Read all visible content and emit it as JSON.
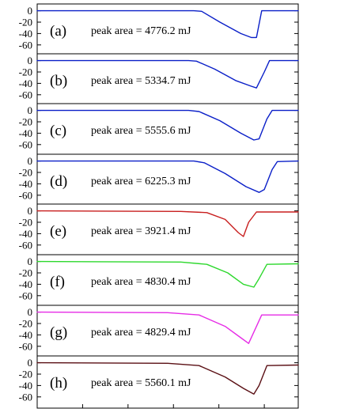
{
  "chart_data": [
    {
      "type": "line",
      "panel_label": "(a)",
      "annotation": "peak area = 4776.2 mJ",
      "ylim": [
        -70,
        5
      ],
      "yticks": [
        "0",
        "-20",
        "-40",
        "-60"
      ],
      "color": "#0a1fc8",
      "series": [
        {
          "x": [
            0.0,
            0.6,
            0.63,
            0.7,
            0.78,
            0.82,
            0.84,
            0.86,
            1.0
          ],
          "y": [
            0,
            0,
            -1,
            -20,
            -40,
            -47,
            -47,
            0,
            0
          ]
        }
      ]
    },
    {
      "type": "line",
      "panel_label": "(b)",
      "annotation": "peak area = 5334.7 mJ",
      "ylim": [
        -70,
        5
      ],
      "yticks": [
        "0",
        "-20",
        "-40",
        "-60"
      ],
      "color": "#0a1fc8",
      "series": [
        {
          "x": [
            0.0,
            0.58,
            0.61,
            0.68,
            0.76,
            0.82,
            0.84,
            0.87,
            0.89,
            1.0
          ],
          "y": [
            0,
            0,
            -1,
            -15,
            -35,
            -45,
            -48,
            -20,
            0,
            0
          ]
        }
      ]
    },
    {
      "type": "line",
      "panel_label": "(c)",
      "annotation": "peak area = 5555.6 mJ",
      "ylim": [
        -70,
        5
      ],
      "yticks": [
        "0",
        "-20",
        "-40",
        "-60"
      ],
      "color": "#0a1fc8",
      "series": [
        {
          "x": [
            0.0,
            0.58,
            0.62,
            0.7,
            0.78,
            0.83,
            0.85,
            0.88,
            0.9,
            1.0
          ],
          "y": [
            0,
            0,
            -2,
            -18,
            -40,
            -52,
            -50,
            -15,
            0,
            0
          ]
        }
      ]
    },
    {
      "type": "line",
      "panel_label": "(d)",
      "annotation": "peak area = 6225.3 mJ",
      "ylim": [
        -70,
        5
      ],
      "yticks": [
        "0",
        "-20",
        "-40",
        "-60"
      ],
      "color": "#0a1fc8",
      "series": [
        {
          "x": [
            0.0,
            0.6,
            0.64,
            0.72,
            0.8,
            0.85,
            0.87,
            0.9,
            0.92,
            1.0
          ],
          "y": [
            0,
            0,
            -3,
            -22,
            -45,
            -55,
            -50,
            -15,
            -1,
            0
          ]
        }
      ]
    },
    {
      "type": "line",
      "panel_label": "(e)",
      "annotation": "peak area = 3921.4 mJ",
      "ylim": [
        -70,
        5
      ],
      "yticks": [
        "0",
        "-20",
        "-40",
        "-60"
      ],
      "color": "#c81e1e",
      "series": [
        {
          "x": [
            0.0,
            0.55,
            0.65,
            0.72,
            0.77,
            0.79,
            0.81,
            0.84,
            1.0
          ],
          "y": [
            0,
            -1,
            -3,
            -15,
            -38,
            -45,
            -20,
            -2,
            -2
          ]
        }
      ]
    },
    {
      "type": "line",
      "panel_label": "(f)",
      "annotation": "peak area = 4830.4 mJ",
      "ylim": [
        -70,
        5
      ],
      "yticks": [
        "0",
        "-20",
        "-40",
        "-60"
      ],
      "color": "#2dd82d",
      "series": [
        {
          "x": [
            0.0,
            0.55,
            0.65,
            0.73,
            0.79,
            0.83,
            0.85,
            0.88,
            1.0
          ],
          "y": [
            0,
            -1,
            -5,
            -20,
            -40,
            -45,
            -30,
            -5,
            -4
          ]
        }
      ]
    },
    {
      "type": "line",
      "panel_label": "(g)",
      "annotation": "peak area = 4829.4 mJ",
      "ylim": [
        -70,
        5
      ],
      "yticks": [
        "0",
        "-20",
        "-40",
        "-60"
      ],
      "color": "#e62ce6",
      "series": [
        {
          "x": [
            0.0,
            0.5,
            0.62,
            0.72,
            0.78,
            0.81,
            0.83,
            0.86,
            1.0
          ],
          "y": [
            0,
            -1,
            -5,
            -25,
            -45,
            -55,
            -35,
            -5,
            -5
          ]
        }
      ]
    },
    {
      "type": "line",
      "panel_label": "(h)",
      "annotation": "peak area = 5560.1 mJ",
      "ylim": [
        -70,
        5
      ],
      "yticks": [
        "0",
        "-20",
        "-40",
        "-60"
      ],
      "color": "#5a0f14",
      "series": [
        {
          "x": [
            0.0,
            0.5,
            0.62,
            0.72,
            0.79,
            0.83,
            0.85,
            0.88,
            1.0
          ],
          "y": [
            0,
            -1,
            -5,
            -25,
            -45,
            -55,
            -40,
            -5,
            -4
          ]
        }
      ]
    }
  ]
}
